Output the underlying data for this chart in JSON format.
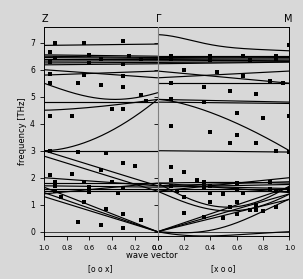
{
  "title": "",
  "ylabel": "frequency [THz]",
  "xlabel": "wave vector",
  "ylim": [
    -0.15,
    7.6
  ],
  "left_label": "[o o x]",
  "right_label": "[x o o]",
  "left_point": "Z",
  "center_point": "Γ",
  "right_point": "M",
  "yticks": [
    0,
    1,
    2,
    3,
    4,
    5,
    6,
    7
  ],
  "bg_color": "#d8d8d8",
  "line_color": "black",
  "scatter_color": "black",
  "scatter_marker": "s",
  "scatter_size": 5,
  "lw": 0.85
}
